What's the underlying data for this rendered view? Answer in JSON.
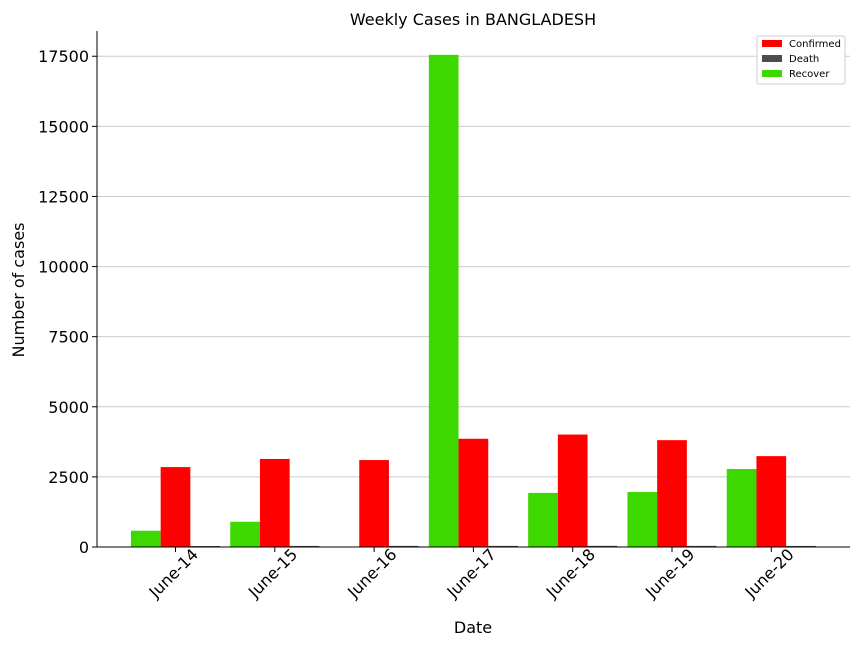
{
  "chart_data": {
    "type": "bar",
    "title": "Weekly Cases in BANGLADESH",
    "xlabel": "Date",
    "ylabel": "Number of cases",
    "categories": [
      "June-14",
      "June-15",
      "June-16",
      "June-17",
      "June-18",
      "June-19",
      "June-20"
    ],
    "ylim": [
      0,
      18400
    ],
    "yticks": [
      0,
      2500,
      5000,
      7500,
      10000,
      12500,
      15000,
      17500
    ],
    "ytick_labels": [
      "0",
      "2500",
      "5000",
      "7500",
      "10000",
      "12500",
      "15000",
      "17500"
    ],
    "grid": "horizontal",
    "legend_position": "top-right",
    "series": [
      {
        "name": "Recover",
        "color": "#3dd800",
        "values": [
          580,
          900,
          0,
          17550,
          1930,
          1960,
          2780
        ]
      },
      {
        "name": "Confirmed",
        "color": "#ff0000",
        "values": [
          2850,
          3140,
          3100,
          3860,
          4010,
          3810,
          3240
        ]
      },
      {
        "name": "Death",
        "color": "#4d4d4d",
        "values": [
          35,
          38,
          40,
          40,
          42,
          40,
          38
        ]
      }
    ],
    "legend_order": [
      "Confirmed",
      "Death",
      "Recover"
    ]
  }
}
